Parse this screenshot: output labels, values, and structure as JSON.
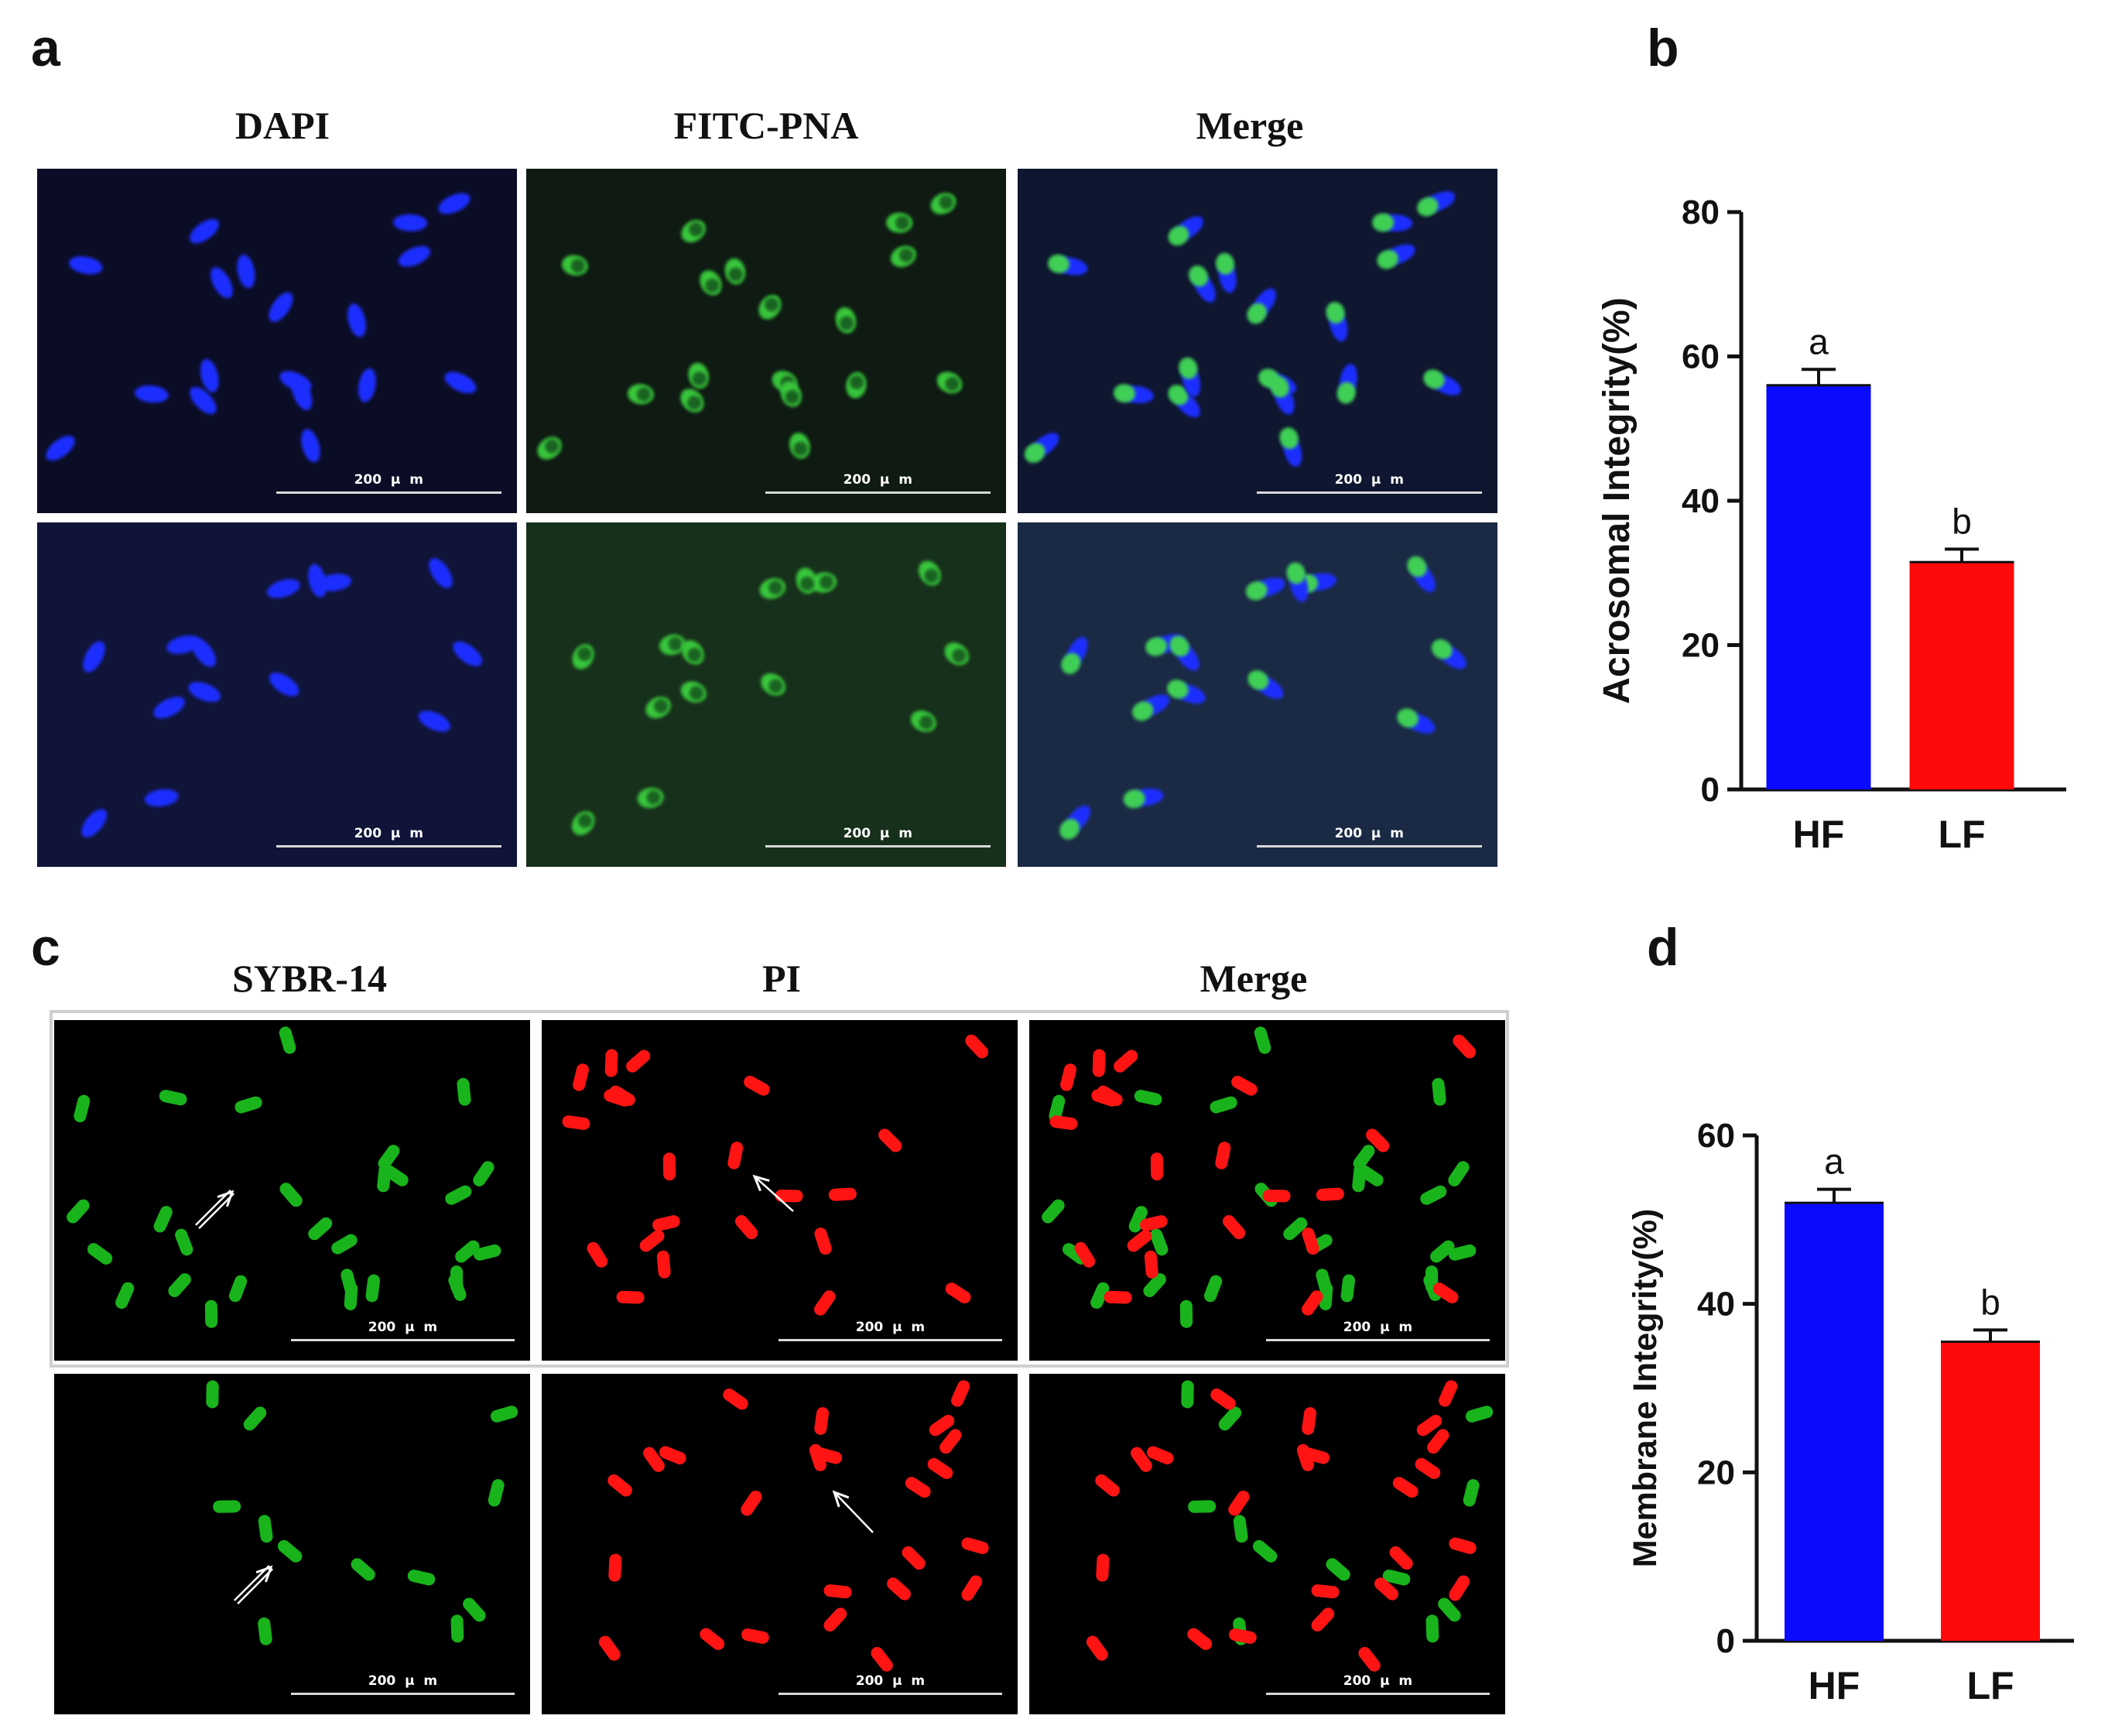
{
  "panel_a": {
    "letter": "a",
    "titles": [
      "DAPI",
      "FITC-PNA",
      "Merge"
    ],
    "scale_label": "200  μ  m"
  },
  "panel_b": {
    "letter": "b"
  },
  "panel_c": {
    "letter": "c",
    "titles": [
      "SYBR-14",
      "PI",
      "Merge"
    ],
    "scale_label": "200  μ  m"
  },
  "panel_d": {
    "letter": "d"
  },
  "chart_data": [
    {
      "type": "bar",
      "ylabel": "Acrosomal Integrity(%)",
      "categories": [
        "HF",
        "LF"
      ],
      "values": [
        56,
        31.5
      ],
      "errors": [
        2.2,
        1.8
      ],
      "significance": [
        "a",
        "b"
      ],
      "colors": [
        "#0a0aff",
        "#ff0a0a"
      ],
      "ylim": [
        0,
        80
      ],
      "yticks": [
        0,
        20,
        40,
        60,
        80
      ]
    },
    {
      "type": "bar",
      "ylabel": "Membrane Integrity(%)",
      "categories": [
        "HF",
        "LF"
      ],
      "values": [
        52,
        35.5
      ],
      "errors": [
        1.6,
        1.4
      ],
      "significance": [
        "a",
        "b"
      ],
      "colors": [
        "#0a0aff",
        "#ff0a0a"
      ],
      "ylim": [
        0,
        60
      ],
      "yticks": [
        0,
        20,
        40,
        60
      ]
    }
  ]
}
